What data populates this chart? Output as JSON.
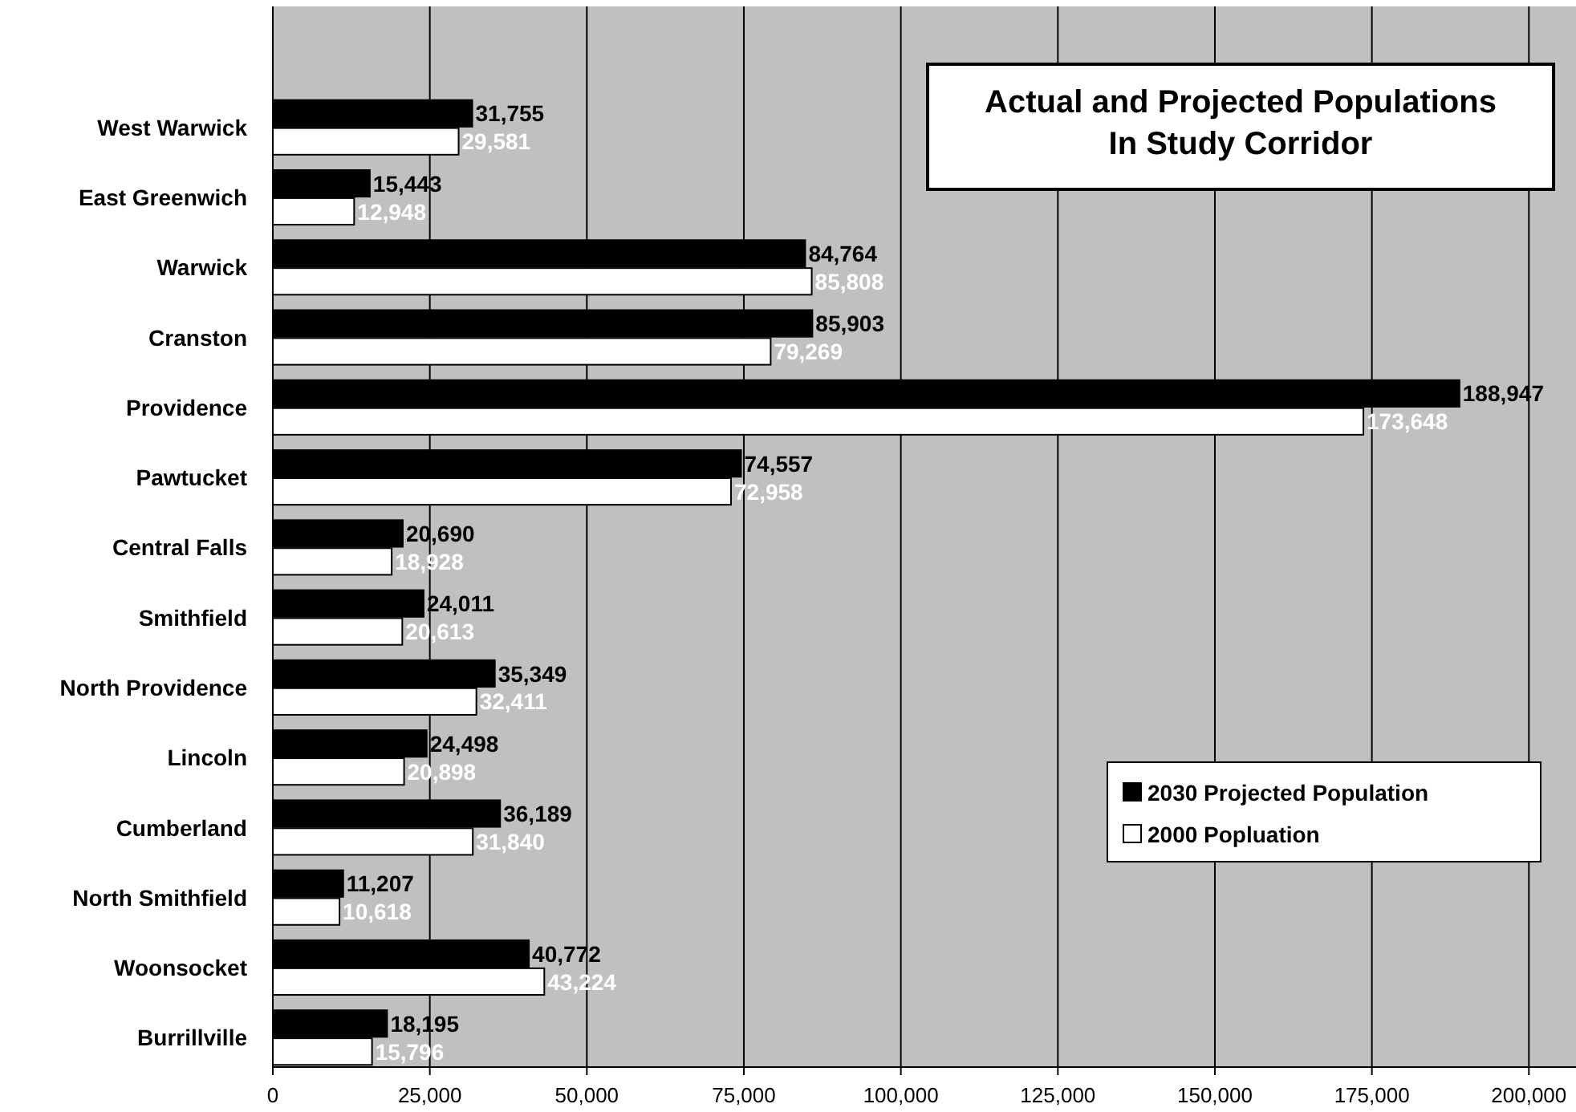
{
  "chart_data": {
    "type": "bar",
    "orientation": "horizontal",
    "title": "Actual and Projected Populations\nIn Study Corridor",
    "categories": [
      "West Warwick",
      "East Greenwich",
      "Warwick",
      "Cranston",
      "Providence",
      "Pawtucket",
      "Central Falls",
      "Smithfield",
      "North Providence",
      "Lincoln",
      "Cumberland",
      "North Smithfield",
      "Woonsocket",
      "Burrillville"
    ],
    "series": [
      {
        "name": "2030 Projected Population",
        "color": "#000000",
        "values": [
          31755,
          15443,
          84764,
          85903,
          188947,
          74557,
          20690,
          24011,
          35349,
          24498,
          36189,
          11207,
          40772,
          18195
        ],
        "value_labels": [
          "31,755",
          "15,443",
          "84,764",
          "85,903",
          "188,947",
          "74,557",
          "20,690",
          "24,011",
          "35,349",
          "24,498",
          "36,189",
          "11,207",
          "40,772",
          "18,195"
        ]
      },
      {
        "name": "2000 Popluation",
        "color": "#ffffff",
        "values": [
          29581,
          12948,
          85808,
          79269,
          173648,
          72958,
          18928,
          20613,
          32411,
          20898,
          31840,
          10618,
          43224,
          15796
        ],
        "value_labels": [
          "29,581",
          "12,948",
          "85,808",
          "79,269",
          "173,648",
          "72,958",
          "18,928",
          "20,613",
          "32,411",
          "20,898",
          "31,840",
          "10,618",
          "43,224",
          "15,796"
        ]
      }
    ],
    "xlim": [
      0,
      207500
    ],
    "xticks": [
      {
        "value": 0,
        "label": "0"
      },
      {
        "value": 25000,
        "label": "25,000"
      },
      {
        "value": 50000,
        "label": "50,000"
      },
      {
        "value": 75000,
        "label": "75,000"
      },
      {
        "value": 100000,
        "label": "100,000"
      },
      {
        "value": 125000,
        "label": "125,000"
      },
      {
        "value": 150000,
        "label": "150,000"
      },
      {
        "value": 175000,
        "label": "175,000"
      },
      {
        "value": 200000,
        "label": "200,000"
      }
    ],
    "grid": "x",
    "legend": "bottom right"
  }
}
